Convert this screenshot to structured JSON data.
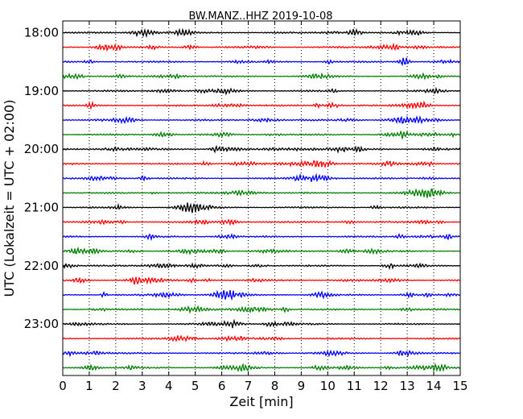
{
  "chart_data": {
    "type": "line",
    "title": "BW.MANZ..HHZ 2019-10-08",
    "xlabel": "Zeit  [min]",
    "ylabel": "UTC (Lokalzeit = UTC + 02:00)",
    "xlim": [
      0,
      15
    ],
    "x_ticks": [
      0,
      1,
      2,
      3,
      4,
      5,
      6,
      7,
      8,
      9,
      10,
      11,
      12,
      13,
      14,
      15
    ],
    "x_grid": true,
    "grid_style": "dotted vertical at each minute",
    "y_tick_labels": [
      "18:00",
      "19:00",
      "20:00",
      "21:00",
      "22:00",
      "23:00"
    ],
    "y_tick_rows": [
      0,
      4,
      8,
      12,
      16,
      20
    ],
    "row_minutes": 15,
    "row_count": 24,
    "row_colors": [
      "#000000",
      "#ff0000",
      "#0000ff",
      "#008000"
    ],
    "series_description": "seismic trace, 15-minute segment per row, colors cycle black/red/blue/green"
  }
}
